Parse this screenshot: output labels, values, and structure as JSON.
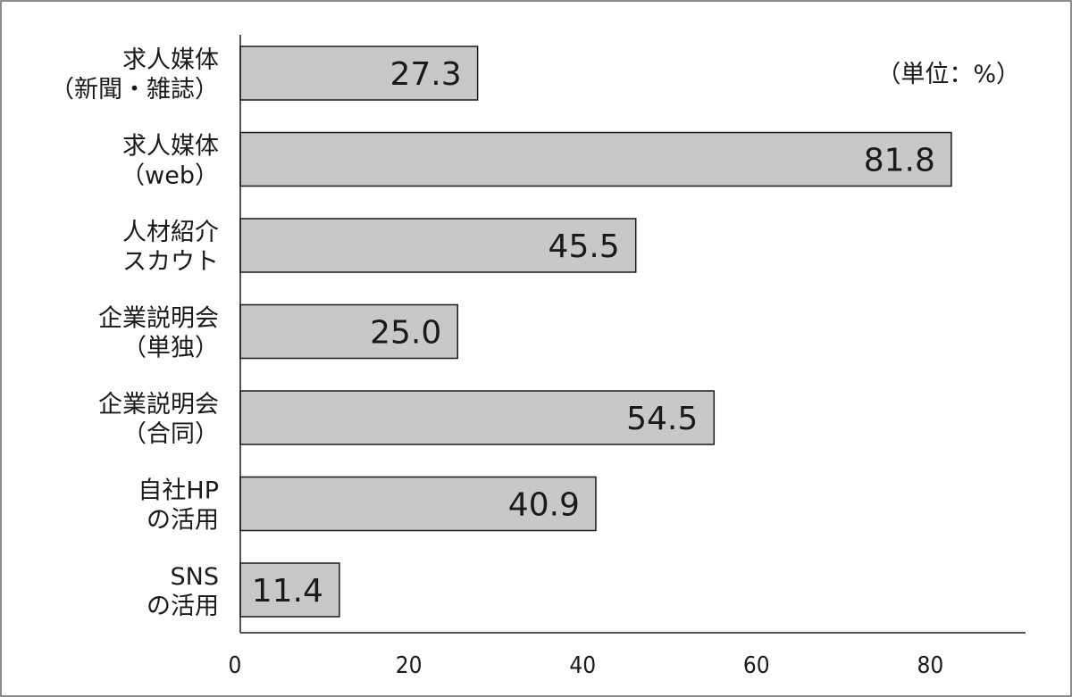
{
  "chart_data": {
    "type": "bar",
    "orientation": "horizontal",
    "unit_label": "（単位：%）",
    "categories": [
      [
        "求人媒体",
        "（新聞・雑誌）"
      ],
      [
        "求人媒体",
        "（web）"
      ],
      [
        "人材紹介",
        "スカウト"
      ],
      [
        "企業説明会",
        "（単独）"
      ],
      [
        "企業説明会",
        "（合同）"
      ],
      [
        "自社HP",
        "の活用"
      ],
      [
        "SNS",
        "の活用"
      ]
    ],
    "values": [
      27.3,
      81.8,
      45.5,
      25.0,
      54.5,
      40.9,
      11.4
    ],
    "value_labels": [
      "27.3",
      "81.8",
      "45.5",
      "25.0",
      "54.5",
      "40.9",
      "11.4"
    ],
    "xlim": [
      0,
      90
    ],
    "xticks": [
      0,
      20,
      40,
      60,
      80
    ],
    "grid": false,
    "bar_color": "#c8c8c8",
    "bar_edge_color": "#1a1a1a"
  }
}
